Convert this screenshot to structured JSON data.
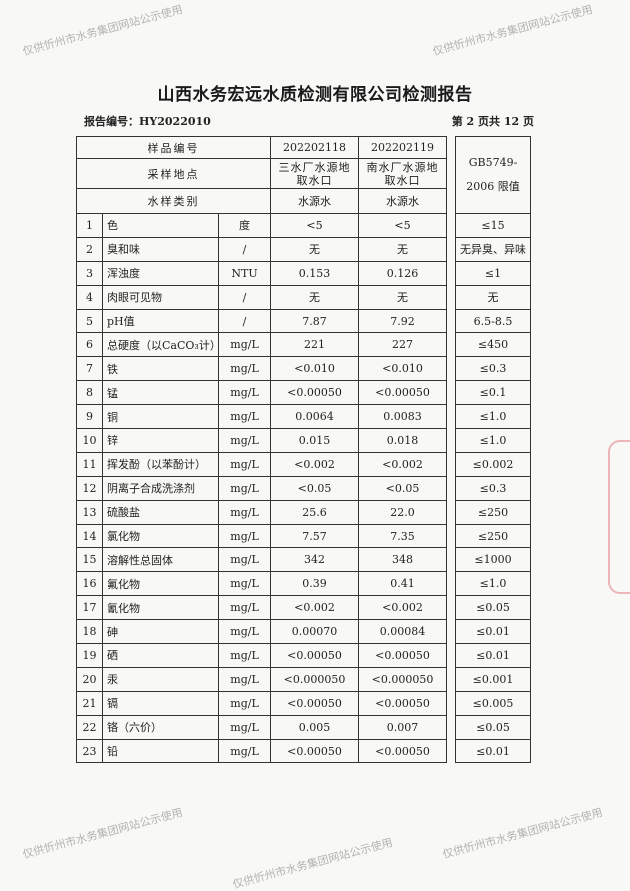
{
  "title": "山西水务宏远水质检测有限公司检测报告",
  "report_no": "报告编号：HY2022010",
  "page_no": "第 2 页共 12 页",
  "header": {
    "sample_no_label": "样品编号",
    "sample_nos": [
      "202202118",
      "202202119"
    ],
    "location_label": "采样地点",
    "locations": [
      "三水厂水源地取水口",
      "南水厂水源地取水口"
    ],
    "type_label": "水样类别",
    "types": [
      "水源水",
      "水源水"
    ],
    "limit_label": "GB5749-2006 限值"
  },
  "rows": [
    {
      "no": "1",
      "name": "色",
      "unit": "度",
      "v1": "<5",
      "v2": "<5",
      "limit": "≤15"
    },
    {
      "no": "2",
      "name": "臭和味",
      "unit": "/",
      "v1": "无",
      "v2": "无",
      "limit": "无异臭、异味"
    },
    {
      "no": "3",
      "name": "浑浊度",
      "unit": "NTU",
      "v1": "0.153",
      "v2": "0.126",
      "limit": "≤1"
    },
    {
      "no": "4",
      "name": "肉眼可见物",
      "unit": "/",
      "v1": "无",
      "v2": "无",
      "limit": "无"
    },
    {
      "no": "5",
      "name": "pH值",
      "unit": "/",
      "v1": "7.87",
      "v2": "7.92",
      "limit": "6.5-8.5"
    },
    {
      "no": "6",
      "name": "总硬度（以CaCO₃计）",
      "unit": "mg/L",
      "v1": "221",
      "v2": "227",
      "limit": "≤450"
    },
    {
      "no": "7",
      "name": "铁",
      "unit": "mg/L",
      "v1": "<0.010",
      "v2": "<0.010",
      "limit": "≤0.3"
    },
    {
      "no": "8",
      "name": "锰",
      "unit": "mg/L",
      "v1": "<0.00050",
      "v2": "<0.00050",
      "limit": "≤0.1"
    },
    {
      "no": "9",
      "name": "铜",
      "unit": "mg/L",
      "v1": "0.0064",
      "v2": "0.0083",
      "limit": "≤1.0"
    },
    {
      "no": "10",
      "name": "锌",
      "unit": "mg/L",
      "v1": "0.015",
      "v2": "0.018",
      "limit": "≤1.0"
    },
    {
      "no": "11",
      "name": "挥发酚（以苯酚计）",
      "unit": "mg/L",
      "v1": "<0.002",
      "v2": "<0.002",
      "limit": "≤0.002"
    },
    {
      "no": "12",
      "name": "阴离子合成洗涤剂",
      "unit": "mg/L",
      "v1": "<0.05",
      "v2": "<0.05",
      "limit": "≤0.3"
    },
    {
      "no": "13",
      "name": "硫酸盐",
      "unit": "mg/L",
      "v1": "25.6",
      "v2": "22.0",
      "limit": "≤250"
    },
    {
      "no": "14",
      "name": "氯化物",
      "unit": "mg/L",
      "v1": "7.57",
      "v2": "7.35",
      "limit": "≤250"
    },
    {
      "no": "15",
      "name": "溶解性总固体",
      "unit": "mg/L",
      "v1": "342",
      "v2": "348",
      "limit": "≤1000"
    },
    {
      "no": "16",
      "name": "氟化物",
      "unit": "mg/L",
      "v1": "0.39",
      "v2": "0.41",
      "limit": "≤1.0"
    },
    {
      "no": "17",
      "name": "氰化物",
      "unit": "mg/L",
      "v1": "<0.002",
      "v2": "<0.002",
      "limit": "≤0.05"
    },
    {
      "no": "18",
      "name": "砷",
      "unit": "mg/L",
      "v1": "0.00070",
      "v2": "0.00084",
      "limit": "≤0.01"
    },
    {
      "no": "19",
      "name": "硒",
      "unit": "mg/L",
      "v1": "<0.00050",
      "v2": "<0.00050",
      "limit": "≤0.01"
    },
    {
      "no": "20",
      "name": "汞",
      "unit": "mg/L",
      "v1": "<0.000050",
      "v2": "<0.000050",
      "limit": "≤0.001"
    },
    {
      "no": "21",
      "name": "镉",
      "unit": "mg/L",
      "v1": "<0.00050",
      "v2": "<0.00050",
      "limit": "≤0.005"
    },
    {
      "no": "22",
      "name": "铬（六价）",
      "unit": "mg/L",
      "v1": "0.005",
      "v2": "0.007",
      "limit": "≤0.05"
    },
    {
      "no": "23",
      "name": "铅",
      "unit": "mg/L",
      "v1": "<0.00050",
      "v2": "<0.00050",
      "limit": "≤0.01"
    }
  ],
  "watermark": "仅供忻州市水务集团网站公示使用"
}
